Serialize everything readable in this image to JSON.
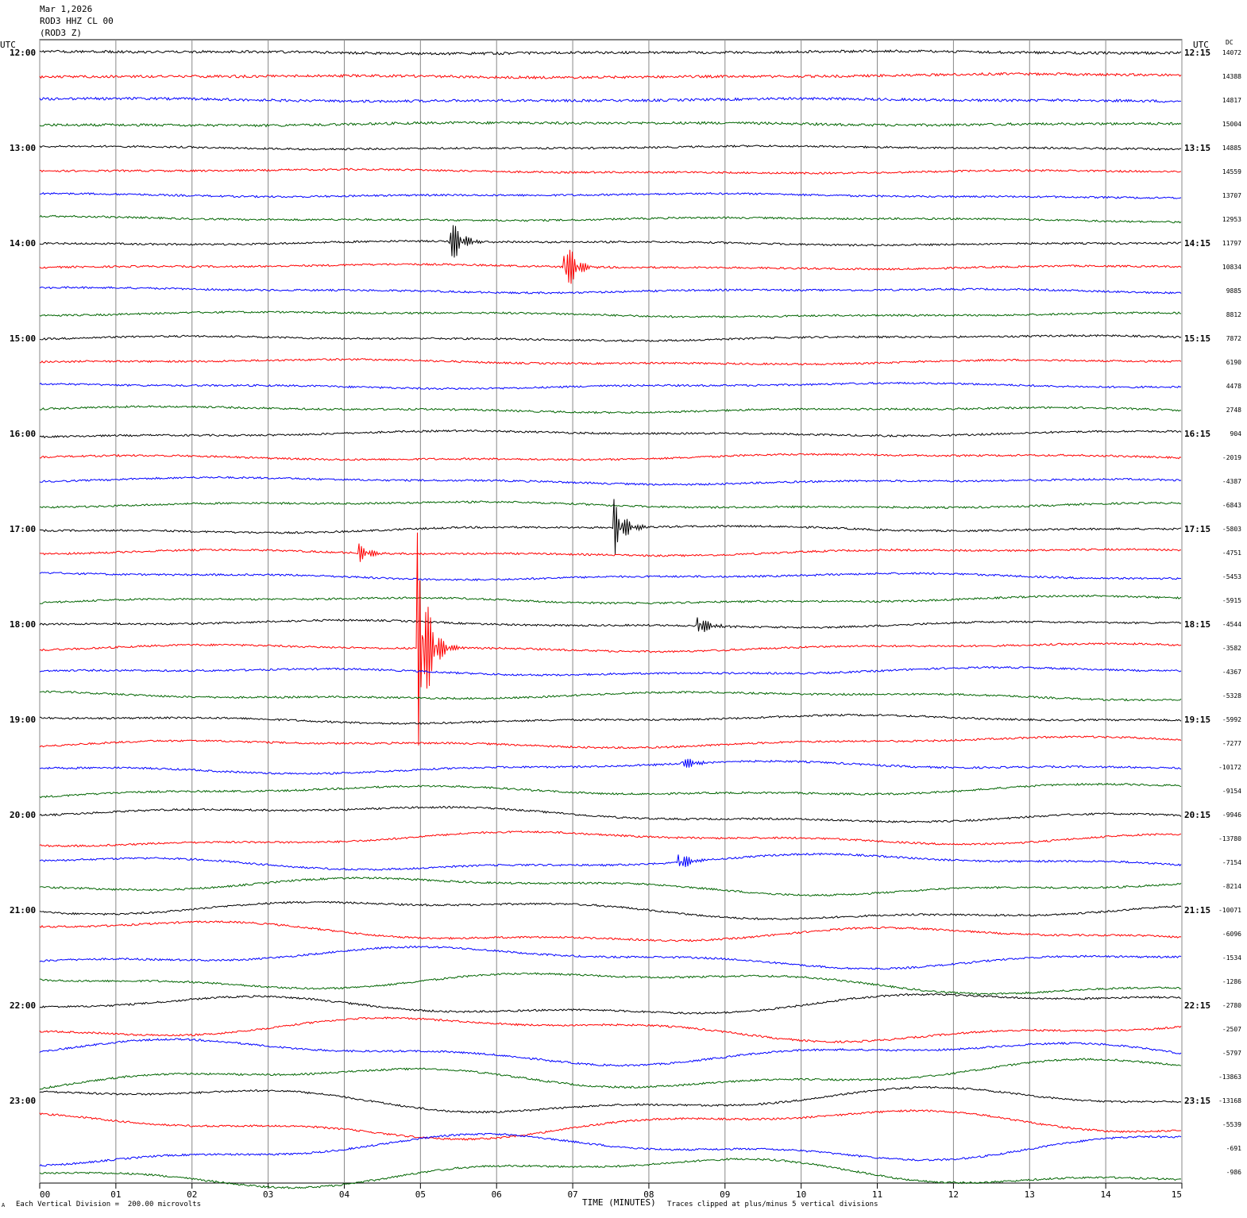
{
  "header": {
    "line1": "Mar 1,2026",
    "line2": "ROD3 HHZ CL 00",
    "line3": "(ROD3 Z)"
  },
  "left_axis_label": "UTC",
  "right_axis_label": "UTC",
  "dc_label": "DC",
  "footer": {
    "scale_note": "Each Vertical Division =  200.00 microvolts",
    "xlabel": "TIME (MINUTES)",
    "clip_note": "Traces clipped at plus/minus 5 vertical divisions",
    "corner_mark": "A"
  },
  "chart_data": {
    "type": "line",
    "title": "",
    "xlabel": "TIME (MINUTES)",
    "ylabel": "",
    "xlim": [
      0,
      15
    ],
    "x_ticks": [
      "00",
      "01",
      "02",
      "03",
      "04",
      "05",
      "06",
      "07",
      "08",
      "09",
      "10",
      "11",
      "12",
      "13",
      "14",
      "15"
    ],
    "grid": true,
    "row_minutes": 15,
    "trace_colors": [
      "#000000",
      "#ff0000",
      "#0000ff",
      "#006400"
    ],
    "left_hour_labels": [
      "12:00",
      "13:00",
      "14:00",
      "15:00",
      "16:00",
      "17:00",
      "18:00",
      "19:00",
      "20:00",
      "21:00",
      "22:00",
      "23:00"
    ],
    "right_hour_labels": [
      "12:15",
      "13:15",
      "14:15",
      "15:15",
      "16:15",
      "17:15",
      "18:15",
      "19:15",
      "20:15",
      "21:15",
      "22:15",
      "23:15"
    ],
    "dc_offsets": [
      "14072",
      "14388",
      "14817",
      "15004",
      "14885",
      "14559",
      "13707",
      "12953",
      "11797",
      "10834",
      "9885",
      "8812",
      "7872",
      "6190",
      "4478",
      "2748",
      "904",
      "-2019",
      "-4387",
      "-6843",
      "-5803",
      "-4751",
      "-5453",
      "-5915",
      "-4544",
      "-3582",
      "-4367",
      "-5328",
      "-5992",
      "-7277",
      "-10172",
      "-9154",
      "-9946",
      "-13780",
      "-7154",
      "-8214",
      "-10071",
      "-6096",
      "-1534",
      "-1286",
      "-2780",
      "-2507",
      "-5797",
      "-13863",
      "-13168",
      "-5539",
      "-691",
      "-986"
    ],
    "events": [
      {
        "row": 8,
        "minute": 5.4,
        "amplitude": 2.2
      },
      {
        "row": 9,
        "minute": 6.9,
        "amplitude": 2.6
      },
      {
        "row": 20,
        "minute": 7.55,
        "amplitude": 2.4
      },
      {
        "row": 21,
        "minute": 4.2,
        "amplitude": 0.8
      },
      {
        "row": 25,
        "minute": 4.97,
        "amplitude": 10.0
      },
      {
        "row": 24,
        "minute": 8.65,
        "amplitude": 1.0
      },
      {
        "row": 30,
        "minute": 8.45,
        "amplitude": 0.7
      },
      {
        "row": 34,
        "minute": 8.4,
        "amplitude": 0.9
      }
    ]
  }
}
